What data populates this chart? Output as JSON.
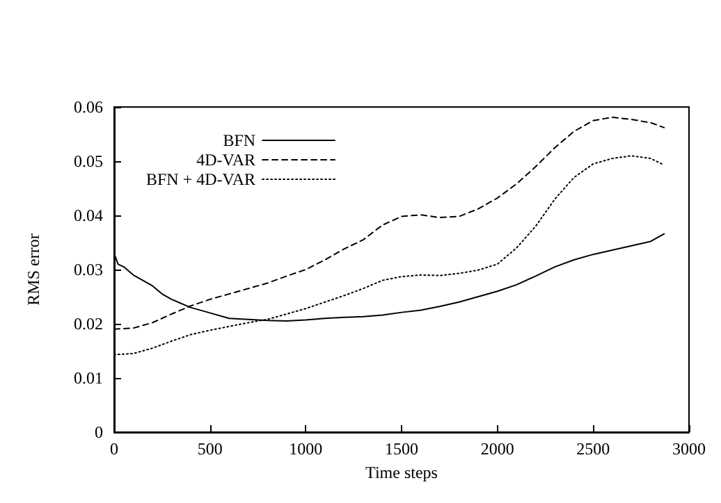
{
  "chart_data": {
    "type": "line",
    "xlabel": "Time steps",
    "ylabel": "RMS error",
    "xlim": [
      0,
      3000
    ],
    "ylim": [
      0,
      0.06
    ],
    "xticks": [
      0,
      500,
      1000,
      1500,
      2000,
      2500,
      3000
    ],
    "yticks": [
      0,
      0.01,
      0.02,
      0.03,
      0.04,
      0.05,
      0.06
    ],
    "grid": false,
    "legend": "top left",
    "marker": "none",
    "series": [
      {
        "name": "BFN",
        "color": "#000000",
        "line_style": "solid",
        "x": [
          0,
          20,
          50,
          100,
          150,
          200,
          250,
          300,
          400,
          500,
          600,
          700,
          800,
          900,
          1000,
          1100,
          1200,
          1300,
          1400,
          1500,
          1600,
          1700,
          1800,
          1900,
          2000,
          2100,
          2200,
          2300,
          2400,
          2500,
          2600,
          2700,
          2800,
          2870
        ],
        "values": [
          0.033,
          0.031,
          0.0305,
          0.029,
          0.028,
          0.027,
          0.0255,
          0.0245,
          0.023,
          0.022,
          0.021,
          0.0208,
          0.0206,
          0.0205,
          0.0207,
          0.021,
          0.0212,
          0.0213,
          0.0216,
          0.0221,
          0.0225,
          0.0232,
          0.024,
          0.025,
          0.026,
          0.0272,
          0.0288,
          0.0305,
          0.0318,
          0.0328,
          0.0336,
          0.0344,
          0.0352,
          0.0366
        ]
      },
      {
        "name": "4D-VAR",
        "color": "#000000",
        "line_style": "dashed",
        "x": [
          0,
          100,
          200,
          300,
          400,
          500,
          600,
          700,
          800,
          900,
          1000,
          1100,
          1200,
          1300,
          1400,
          1500,
          1600,
          1700,
          1800,
          1900,
          2000,
          2100,
          2200,
          2300,
          2400,
          2500,
          2600,
          2700,
          2800,
          2870
        ],
        "values": [
          0.019,
          0.0192,
          0.0202,
          0.0218,
          0.0233,
          0.0245,
          0.0255,
          0.0265,
          0.0275,
          0.0288,
          0.03,
          0.0318,
          0.0338,
          0.0355,
          0.0382,
          0.0398,
          0.0401,
          0.0396,
          0.0398,
          0.0412,
          0.0432,
          0.0458,
          0.049,
          0.0525,
          0.0555,
          0.0575,
          0.0581,
          0.0577,
          0.0571,
          0.0562
        ]
      },
      {
        "name": "BFN + 4D-VAR",
        "color": "#000000",
        "line_style": "dotted",
        "x": [
          0,
          100,
          200,
          300,
          400,
          500,
          600,
          700,
          800,
          900,
          1000,
          1100,
          1200,
          1300,
          1400,
          1500,
          1600,
          1700,
          1800,
          1900,
          2000,
          2100,
          2200,
          2300,
          2400,
          2500,
          2600,
          2700,
          2800,
          2870
        ],
        "values": [
          0.0143,
          0.0145,
          0.0155,
          0.0168,
          0.018,
          0.0188,
          0.0195,
          0.0202,
          0.0208,
          0.0218,
          0.0228,
          0.024,
          0.0252,
          0.0265,
          0.028,
          0.0287,
          0.029,
          0.0289,
          0.0293,
          0.0299,
          0.031,
          0.034,
          0.038,
          0.043,
          0.047,
          0.0495,
          0.0505,
          0.051,
          0.0505,
          0.0493
        ]
      }
    ]
  }
}
